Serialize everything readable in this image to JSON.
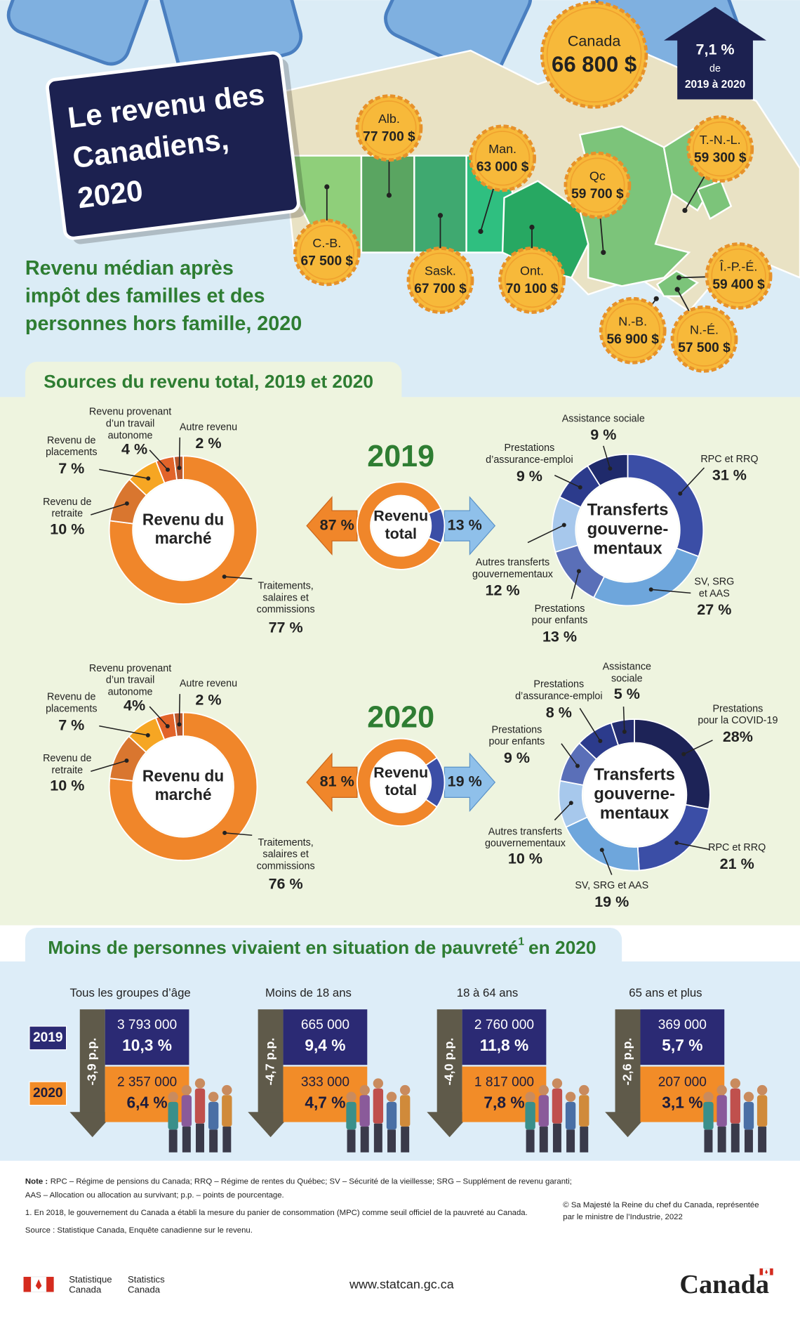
{
  "header": {
    "title": [
      "Le revenu des",
      "Canadiens,",
      "2020"
    ],
    "subtitle": [
      "Revenu médian après",
      "impôt des familles et des",
      "personnes hors famille, 2020"
    ]
  },
  "canada": {
    "name": "Canada",
    "value": "66 800 $"
  },
  "change": {
    "value": "7,1 %",
    "word": "de",
    "period": "2019 à 2020"
  },
  "provinces": [
    {
      "name": "Alb.",
      "value": "77 700 $"
    },
    {
      "name": "Man.",
      "value": "63 000 $"
    },
    {
      "name": "Qc",
      "value": "59 700 $"
    },
    {
      "name": "T.-N.-L.",
      "value": "59 300 $"
    },
    {
      "name": "C.-B.",
      "value": "67 500 $"
    },
    {
      "name": "Sask.",
      "value": "67 700 $"
    },
    {
      "name": "Ont.",
      "value": "70 100 $"
    },
    {
      "name": "Î.-P.-É.",
      "value": "59 400 $"
    },
    {
      "name": "N.-B.",
      "value": "56 900 $"
    },
    {
      "name": "N.-É.",
      "value": "57 500 $"
    }
  ],
  "sources": {
    "title": "Sources du revenu total, 2019 et 2020",
    "years": [
      {
        "year": "2019",
        "market": {
          "center": [
            "Revenu du",
            "marché"
          ],
          "segments": [
            {
              "label": [
                "Traitements,",
                "salaires et",
                "commissions"
              ],
              "value": 77,
              "value_label": "77 %",
              "color": "#f0862a"
            },
            {
              "label": [
                "Revenu de",
                "retraite"
              ],
              "value": 10,
              "value_label": "10 %",
              "color": "#d9762f"
            },
            {
              "label": [
                "Revenu de",
                "placements"
              ],
              "value": 7,
              "value_label": "7 %",
              "color": "#f6a623"
            },
            {
              "label": [
                "Revenu provenant",
                "d’un travail",
                "autonome"
              ],
              "value": 4,
              "value_label": "4 %",
              "color": "#e2642a"
            },
            {
              "label": [
                "Autre revenu"
              ],
              "value": 2,
              "value_label": "2 %",
              "color": "#b9582e"
            }
          ]
        },
        "total": {
          "center": [
            "Revenu",
            "total"
          ],
          "segments": [
            {
              "value": 87,
              "value_label": "87 %",
              "color": "#f0862a"
            },
            {
              "value": 13,
              "value_label": "13 %",
              "color": "#3b4ea6"
            }
          ]
        },
        "transfers": {
          "center": [
            "Transferts",
            "gouverne-",
            "mentaux"
          ],
          "segments": [
            {
              "label": [
                "RPC et RRQ"
              ],
              "value": 31,
              "value_label": "31 %",
              "color": "#3b4ea6"
            },
            {
              "label": [
                "SV, SRG",
                "et AAS"
              ],
              "value": 27,
              "value_label": "27 %",
              "color": "#6ea6dc"
            },
            {
              "label": [
                "Prestations",
                "pour enfants"
              ],
              "value": 13,
              "value_label": "13 %",
              "color": "#5a6fb8"
            },
            {
              "label": [
                "Autres transferts",
                "gouvernementaux"
              ],
              "value": 12,
              "value_label": "12 %",
              "color": "#a7c8ec"
            },
            {
              "label": [
                "Prestations",
                "d’assurance-emploi"
              ],
              "value": 9,
              "value_label": "9 %",
              "color": "#2c3b8c"
            },
            {
              "label": [
                "Assistance sociale"
              ],
              "value": 9,
              "value_label": "9 %",
              "color": "#1f2a6b"
            }
          ]
        }
      },
      {
        "year": "2020",
        "market": {
          "center": [
            "Revenu du",
            "marché"
          ],
          "segments": [
            {
              "label": [
                "Traitements,",
                "salaires et",
                "commissions"
              ],
              "value": 76,
              "value_label": "76 %",
              "color": "#f0862a"
            },
            {
              "label": [
                "Revenu de",
                "retraite"
              ],
              "value": 10,
              "value_label": "10 %",
              "color": "#d9762f"
            },
            {
              "label": [
                "Revenu de",
                "placements"
              ],
              "value": 7,
              "value_label": "7 %",
              "color": "#f6a623"
            },
            {
              "label": [
                "Revenu provenant",
                "d’un travail",
                "autonome"
              ],
              "value": 4,
              "value_label": "4%",
              "color": "#e2642a"
            },
            {
              "label": [
                "Autre revenu"
              ],
              "value": 2,
              "value_label": "2 %",
              "color": "#b9582e"
            }
          ]
        },
        "total": {
          "center": [
            "Revenu",
            "total"
          ],
          "segments": [
            {
              "value": 81,
              "value_label": "81 %",
              "color": "#f0862a"
            },
            {
              "value": 19,
              "value_label": "19 %",
              "color": "#3b4ea6"
            }
          ]
        },
        "transfers": {
          "center": [
            "Transferts",
            "gouverne-",
            "mentaux"
          ],
          "segments": [
            {
              "label": [
                "Prestations",
                "pour la COVID-19"
              ],
              "value": 28,
              "value_label": "28%",
              "color": "#1d2357"
            },
            {
              "label": [
                "RPC et RRQ"
              ],
              "value": 21,
              "value_label": "21 %",
              "color": "#3b4ea6"
            },
            {
              "label": [
                "SV, SRG et AAS"
              ],
              "value": 19,
              "value_label": "19 %",
              "color": "#6ea6dc"
            },
            {
              "label": [
                "Autres transferts",
                "gouvernementaux"
              ],
              "value": 10,
              "value_label": "10 %",
              "color": "#a7c8ec"
            },
            {
              "label": [
                "Prestations",
                "pour enfants"
              ],
              "value": 9,
              "value_label": "9 %",
              "color": "#5a6fb8"
            },
            {
              "label": [
                "Prestations",
                "d’assurance-emploi"
              ],
              "value": 8,
              "value_label": "8 %",
              "color": "#2c3b8c"
            },
            {
              "label": [
                "Assistance",
                "sociale"
              ],
              "value": 5,
              "value_label": "5 %",
              "color": "#242d70"
            }
          ]
        }
      }
    ]
  },
  "poverty": {
    "title": [
      "Moins de personnes vivaient en situation de pauvreté",
      "1",
      "en 2020"
    ],
    "years": [
      "2019",
      "2020"
    ],
    "groups": [
      {
        "name": "Tous les groupes d’âge",
        "change": "-3,9 p.p.",
        "y2019": {
          "count": "3 793 000",
          "rate": "10,3 %"
        },
        "y2020": {
          "count": "2 357 000",
          "rate": "6,4 %"
        }
      },
      {
        "name": "Moins de 18 ans",
        "change": "-4,7 p.p.",
        "y2019": {
          "count": "665 000",
          "rate": "9,4 %"
        },
        "y2020": {
          "count": "333 000",
          "rate": "4,7 %"
        }
      },
      {
        "name": "18 à 64 ans",
        "change": "-4,0 p.p.",
        "y2019": {
          "count": "2 760 000",
          "rate": "11,8 %"
        },
        "y2020": {
          "count": "1 817 000",
          "rate": "7,8 %"
        }
      },
      {
        "name": "65 ans et plus",
        "change": "-2,6 p.p.",
        "y2019": {
          "count": "369 000",
          "rate": "5,7 %"
        },
        "y2020": {
          "count": "207 000",
          "rate": "3,1 %"
        }
      }
    ]
  },
  "notes": {
    "note_label": "Note :",
    "note": [
      "RPC – Régime de pensions du Canada; RRQ – Régime de rentes du Québec; SV – Sécurité de la vieillesse; SRG – Supplément de revenu garanti;",
      "AAS – Allocation ou allocation au survivant; p.p. – points de pourcentage."
    ],
    "footnote": "1. En 2018, le gouvernement du Canada a établi la mesure du panier de consommation (MPC) comme seuil officiel de la pauvreté au Canada.",
    "source": "Source : Statistique Canada, Enquête canadienne sur le revenu.",
    "copyright": [
      "© Sa Majesté la Reine du chef du Canada, représentée",
      "par le ministre de l’Industrie, 2022"
    ]
  },
  "footer": {
    "fr": [
      "Statistique",
      "Canada"
    ],
    "en": [
      "Statistics",
      "Canada"
    ],
    "url": "www.statcan.gc.ca",
    "wordmark": "Canada"
  }
}
